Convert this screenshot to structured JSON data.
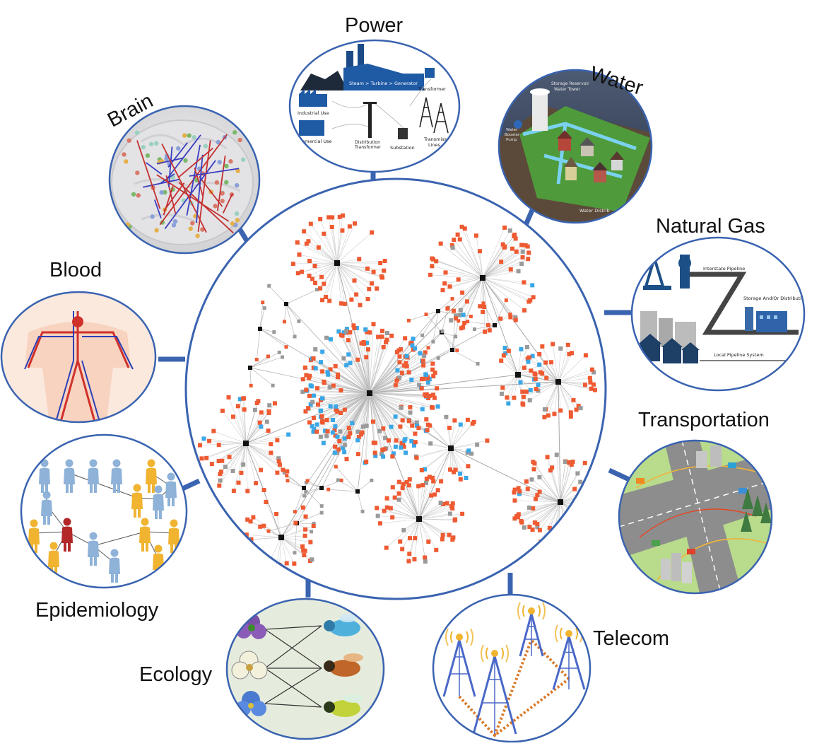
{
  "diagram": {
    "center": {
      "name": "network-hub"
    },
    "labels": {
      "power": "Power",
      "water": "Water",
      "brain": "Brain",
      "natural_gas": "Natural Gas",
      "blood": "Blood",
      "transportation": "Transportation",
      "epidemiology": "Epidemiology",
      "telecom": "Telecom",
      "ecology": "Ecology"
    },
    "power_panel": {
      "steam": "Steam > Turbine > Generator",
      "transformer": "Transformer",
      "industrial": "Industrial Use",
      "commercial": "ommercial Use",
      "distribution": "Distribution",
      "distribution2": "Transformer",
      "substation": "Substation",
      "transmission": "Transmiss",
      "lines": "Lines"
    },
    "water_panel": {
      "storage": "Storage Reservoir",
      "tower": "Water Tower",
      "booster": "Water",
      "booster2": "Booster",
      "pump": "Pump",
      "dist": "Water Distrib"
    },
    "gas_panel": {
      "interstate": "Interstate Pipeline",
      "storage": "Storage And/Or Distribution",
      "local": "Local Pipeline System"
    },
    "colors": {
      "ring": "#3a63b0",
      "hub_orange": "#ee5a32",
      "hub_blue": "#3aa7e6",
      "hub_gray": "#9a9a9a",
      "edge": "#b9b9b9"
    }
  }
}
